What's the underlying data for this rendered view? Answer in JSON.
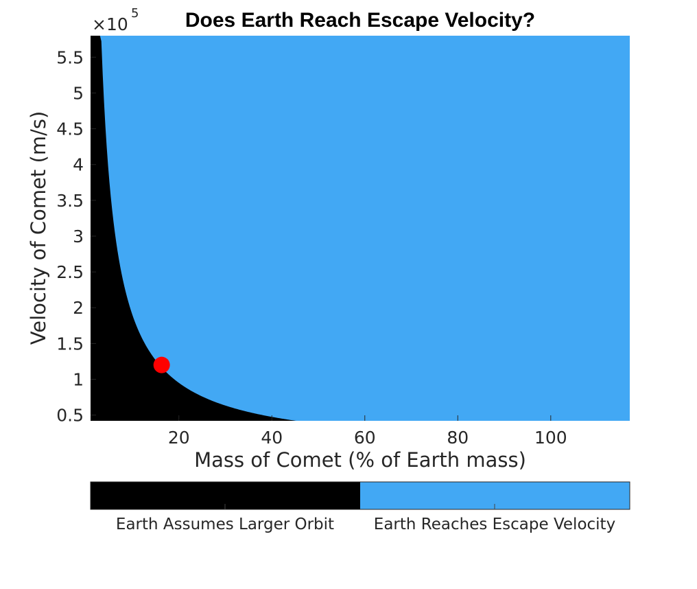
{
  "chart_data": {
    "type": "heatmap",
    "title": "Does Earth Reach Escape Velocity?",
    "xlabel": "Mass of Comet (% of Earth mass)",
    "ylabel": "Velocity of Comet (m/s)",
    "y_exponent_base": "×10",
    "y_exponent_power": "5",
    "xlim": [
      1,
      117
    ],
    "ylim": [
      0.42,
      5.8
    ],
    "x_ticks": [
      20,
      40,
      60,
      80,
      100
    ],
    "x_tick_labels": [
      "20",
      "40",
      "60",
      "80",
      "100"
    ],
    "y_ticks": [
      0.5,
      1,
      1.5,
      2,
      2.5,
      3,
      3.5,
      4,
      4.5,
      5,
      5.5
    ],
    "y_tick_labels": [
      "0.5",
      "1",
      "1.5",
      "2",
      "2.5",
      "3",
      "3.5",
      "4",
      "4.5",
      "5",
      "5.5"
    ],
    "y_scale_factor": 100000,
    "boundary_curve": "v = 19 / mass (in 10^5 m/s)",
    "boundary_points": [
      {
        "mass": 2,
        "velocity": 9.5
      },
      {
        "mass": 4,
        "velocity": 4.75
      },
      {
        "mass": 8,
        "velocity": 2.38
      },
      {
        "mass": 16,
        "velocity": 1.19
      },
      {
        "mass": 30,
        "velocity": 0.63
      },
      {
        "mass": 60,
        "velocity": 0.32
      },
      {
        "mass": 117,
        "velocity": 0.16
      }
    ],
    "classes": [
      {
        "name": "Earth Assumes Larger Orbit",
        "color": "#000000",
        "region": "below boundary"
      },
      {
        "name": "Earth Reaches Escape Velocity",
        "color": "#42a8f4",
        "region": "above boundary"
      }
    ],
    "marker": {
      "mass": 16.3,
      "velocity": 1.2,
      "color": "#ff0000"
    },
    "grid": false,
    "legend": "colorbar bottom"
  }
}
